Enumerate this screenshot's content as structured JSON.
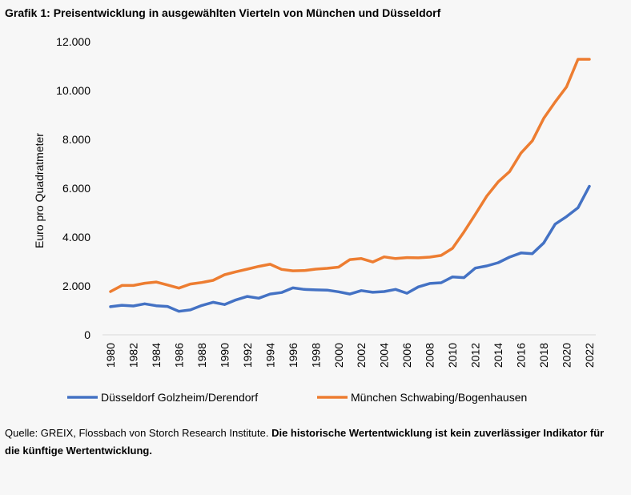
{
  "chart_data": {
    "type": "line",
    "title": "Grafik 1: Preisentwicklung in ausgewählten Vierteln von München und Düsseldorf",
    "xlabel": "",
    "ylabel": "Euro pro Quadratmeter",
    "ylim": [
      0,
      12000
    ],
    "yticks": [
      0,
      2000,
      4000,
      6000,
      8000,
      10000,
      12000
    ],
    "ytick_labels": [
      "0",
      "2.000",
      "4.000",
      "6.000",
      "8.000",
      "10.000",
      "12.000"
    ],
    "x": [
      1980,
      1981,
      1982,
      1983,
      1984,
      1985,
      1986,
      1987,
      1988,
      1989,
      1990,
      1991,
      1992,
      1993,
      1994,
      1995,
      1996,
      1997,
      1998,
      1999,
      2000,
      2001,
      2002,
      2003,
      2004,
      2005,
      2006,
      2007,
      2008,
      2009,
      2010,
      2011,
      2012,
      2013,
      2014,
      2015,
      2016,
      2017,
      2018,
      2019,
      2020,
      2021,
      2022
    ],
    "xtick_labels": [
      "1980",
      "1982",
      "1984",
      "1986",
      "1988",
      "1990",
      "1992",
      "1994",
      "1996",
      "1998",
      "2000",
      "2002",
      "2004",
      "2006",
      "2008",
      "2010",
      "2012",
      "2014",
      "2016",
      "2018",
      "2020",
      "2022"
    ],
    "legend_position": "bottom",
    "grid": false,
    "series": [
      {
        "name": "Düsseldorf Golzheim/Derendorf",
        "color": "#4472c4",
        "values": [
          1150,
          1210,
          1180,
          1270,
          1190,
          1160,
          960,
          1020,
          1200,
          1330,
          1240,
          1430,
          1570,
          1500,
          1670,
          1730,
          1920,
          1860,
          1840,
          1830,
          1760,
          1670,
          1810,
          1740,
          1770,
          1860,
          1700,
          1960,
          2100,
          2130,
          2370,
          2340,
          2730,
          2820,
          2950,
          3180,
          3350,
          3320,
          3760,
          4530,
          4840,
          5200,
          6080
        ]
      },
      {
        "name": "München Schwabing/Bogenhausen",
        "color": "#ed7d31",
        "values": [
          1770,
          2020,
          2020,
          2110,
          2160,
          2040,
          1910,
          2080,
          2140,
          2230,
          2460,
          2580,
          2690,
          2800,
          2890,
          2680,
          2620,
          2630,
          2690,
          2720,
          2770,
          3080,
          3120,
          2980,
          3190,
          3120,
          3160,
          3150,
          3180,
          3250,
          3540,
          4210,
          4930,
          5680,
          6260,
          6680,
          7440,
          7940,
          8860,
          9530,
          10150,
          11280,
          11280
        ]
      }
    ]
  },
  "source": {
    "normal": "Quelle: GREIX, Flossbach von Storch Research Institute. ",
    "bold": "Die historische Wertentwicklung ist kein zuverlässiger Indikator für die künftige Wertentwicklung."
  }
}
